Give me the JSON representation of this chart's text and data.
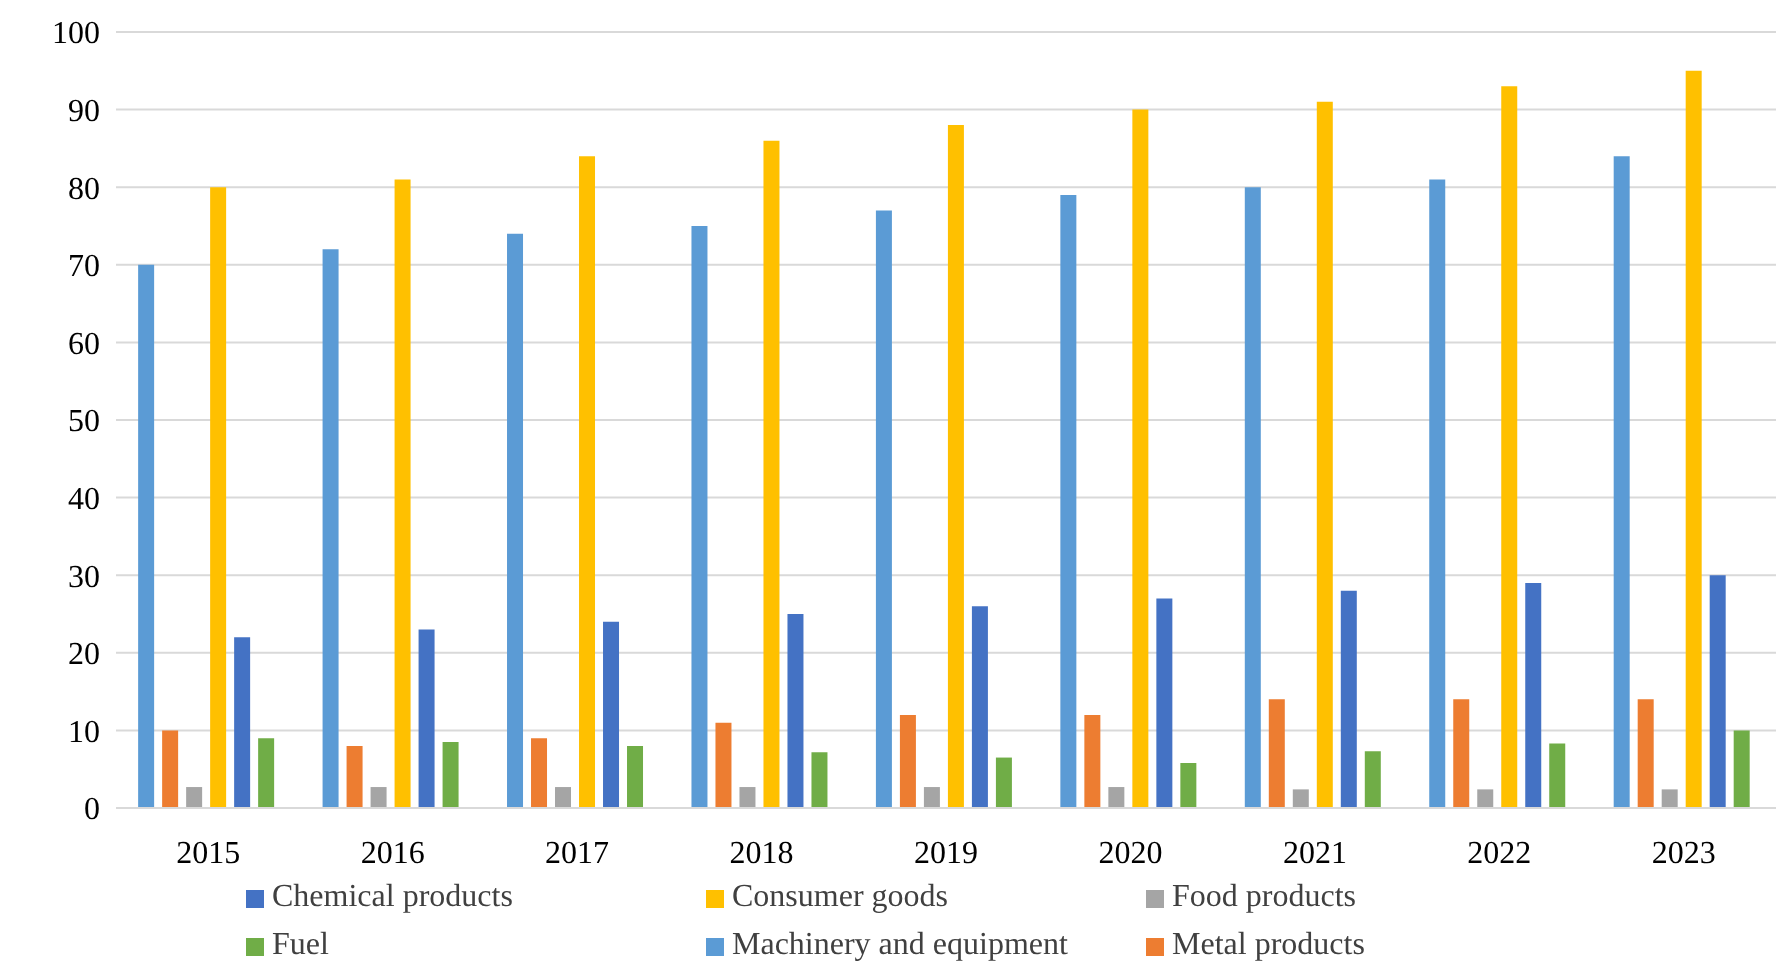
{
  "chart_data": {
    "type": "bar",
    "categories": [
      "2015",
      "2016",
      "2017",
      "2018",
      "2019",
      "2020",
      "2021",
      "2022",
      "2023"
    ],
    "series": [
      {
        "name": "Machinery and equipment",
        "color": "#5b9bd5",
        "values": [
          70,
          72,
          74,
          75,
          77,
          79,
          80,
          81,
          84
        ]
      },
      {
        "name": "Metal products",
        "color": "#ed7d31",
        "values": [
          10,
          8,
          9,
          11,
          12,
          12,
          14,
          14,
          14
        ]
      },
      {
        "name": "Food products",
        "color": "#a5a5a5",
        "values": [
          2.7,
          2.7,
          2.7,
          2.7,
          2.7,
          2.7,
          2.4,
          2.4,
          2.4
        ]
      },
      {
        "name": "Consumer goods",
        "color": "#ffc000",
        "values": [
          80,
          81,
          84,
          86,
          88,
          90,
          91,
          93,
          95
        ]
      },
      {
        "name": "Chemical products",
        "color": "#4472c4",
        "values": [
          22,
          23,
          24,
          25,
          26,
          27,
          28,
          29,
          30
        ]
      },
      {
        "name": "Fuel",
        "color": "#70ad47",
        "values": [
          9,
          8.5,
          8,
          7.2,
          6.5,
          5.8,
          7.3,
          8.3,
          10
        ]
      }
    ],
    "ylim": [
      0,
      100
    ],
    "yticks": [
      0,
      10,
      20,
      30,
      40,
      50,
      60,
      70,
      80,
      90,
      100
    ],
    "grid": "y",
    "legend": "bottom"
  }
}
